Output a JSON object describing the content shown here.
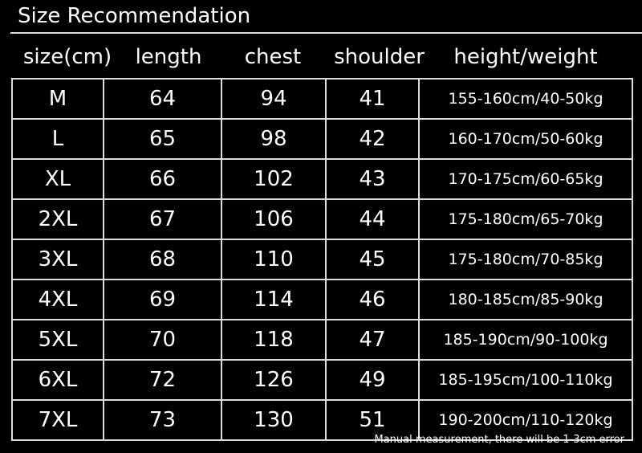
{
  "title": "Size Recommendation",
  "headers": [
    "size(cm)",
    "length",
    "chest",
    "shoulder",
    "height/weight"
  ],
  "rows": [
    [
      "M",
      "64",
      "94",
      "41",
      "155-160cm/40-50kg"
    ],
    [
      "L",
      "65",
      "98",
      "42",
      "160-170cm/50-60kg"
    ],
    [
      "XL",
      "66",
      "102",
      "43",
      "170-175cm/60-65kg"
    ],
    [
      "2XL",
      "67",
      "106",
      "44",
      "175-180cm/65-70kg"
    ],
    [
      "3XL",
      "68",
      "110",
      "45",
      "175-180cm/70-85kg"
    ],
    [
      "4XL",
      "69",
      "114",
      "46",
      "180-185cm/85-90kg"
    ],
    [
      "5XL",
      "70",
      "118",
      "47",
      "185-190cm/90-100kg"
    ],
    [
      "6XL",
      "72",
      "126",
      "49",
      "185-195cm/100-110kg"
    ],
    [
      "7XL",
      "73",
      "130",
      "51",
      "190-200cm/110-120kg"
    ]
  ],
  "note": "Manual measurement, there will be 1-3cm error"
}
